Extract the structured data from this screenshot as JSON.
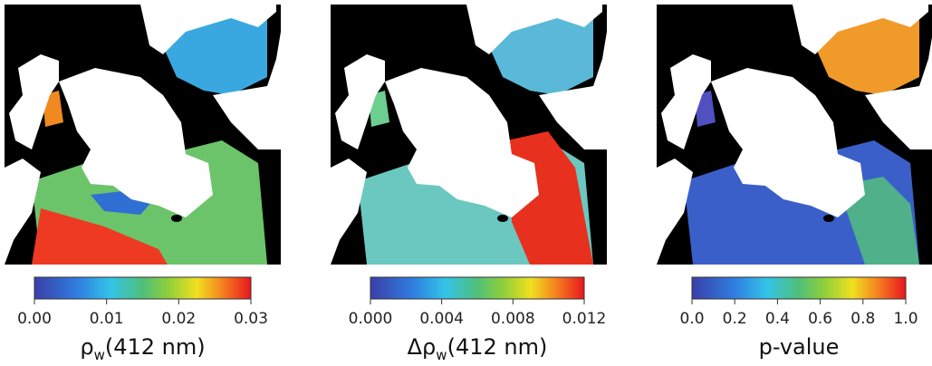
{
  "panels": [
    {
      "label": {
        "symbol": "ρ",
        "subscript": "w",
        "suffix": "(412 nm)"
      },
      "lim": [
        0,
        0.03
      ],
      "ticks": [
        {
          "value": 0,
          "label": "0.00"
        },
        {
          "value": 0.01,
          "label": "0.01"
        },
        {
          "value": 0.02,
          "label": "0.02"
        },
        {
          "value": 0.03,
          "label": "0.03"
        }
      ]
    },
    {
      "label": {
        "symbol": "Δρ",
        "subscript": "w",
        "suffix": "(412 nm)"
      },
      "lim": [
        0,
        0.012
      ],
      "ticks": [
        {
          "value": 0,
          "label": "0.000"
        },
        {
          "value": 0.004,
          "label": "0.004"
        },
        {
          "value": 0.008,
          "label": "0.008"
        },
        {
          "value": 0.012,
          "label": "0.012"
        }
      ]
    },
    {
      "label": {
        "symbol": "p-value"
      },
      "lim": [
        0,
        1
      ],
      "ticks": [
        {
          "value": 0,
          "label": "0.0"
        },
        {
          "value": 0.2,
          "label": "0.2"
        },
        {
          "value": 0.4,
          "label": "0.4"
        },
        {
          "value": 0.6,
          "label": "0.6"
        },
        {
          "value": 0.8,
          "label": "0.8"
        },
        {
          "value": 1,
          "label": "1.0"
        }
      ]
    }
  ]
}
